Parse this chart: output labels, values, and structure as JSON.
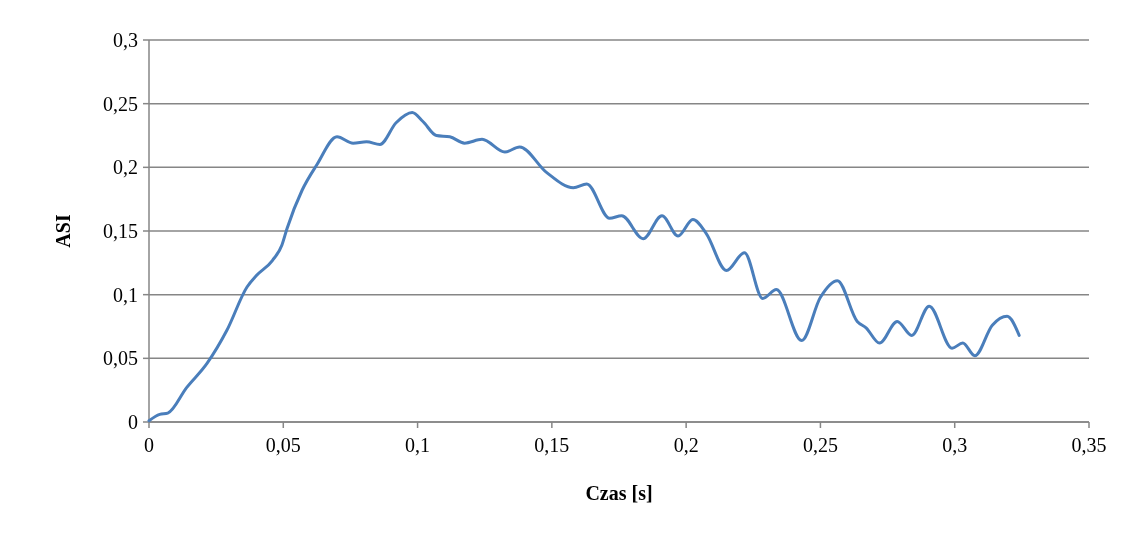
{
  "chart_data": {
    "type": "line",
    "xlabel": "Czas [s]",
    "ylabel": "ASI",
    "xlim": [
      0,
      0.35
    ],
    "ylim": [
      0,
      0.3
    ],
    "xticks": [
      0,
      {
        "value": 0.05,
        "label": "0,05"
      },
      {
        "value": 0.1,
        "label": "0,1"
      },
      {
        "value": 0.15,
        "label": "0,15"
      },
      {
        "value": 0.2,
        "label": "0,2"
      },
      {
        "value": 0.25,
        "label": "0,25"
      },
      {
        "value": 0.3,
        "label": "0,3"
      },
      {
        "value": 0.35,
        "label": "0,35"
      }
    ],
    "yticks": [
      0,
      {
        "value": 0.05,
        "label": "0,05"
      },
      {
        "value": 0.1,
        "label": "0,1"
      },
      {
        "value": 0.15,
        "label": "0,15"
      },
      {
        "value": 0.2,
        "label": "0,2"
      },
      {
        "value": 0.25,
        "label": "0,25"
      },
      {
        "value": 0.3,
        "label": "0,3"
      }
    ],
    "grid": "y",
    "marker": "none",
    "line_style": "solid",
    "series": [
      {
        "color": "#4a7ebb",
        "x": [
          0,
          0.004,
          0.007,
          0.014,
          0.0216,
          0.029,
          0.0365,
          0.04,
          0.046,
          0.0495,
          0.0514,
          0.057,
          0.0625,
          0.07,
          0.076,
          0.081,
          0.086,
          0.092,
          0.098,
          0.102,
          0.107,
          0.112,
          0.1175,
          0.124,
          0.1325,
          0.138,
          0.148,
          0.158,
          0.163,
          0.1715,
          0.176,
          0.184,
          0.191,
          0.197,
          0.2025,
          0.2075,
          0.215,
          0.2217,
          0.2285,
          0.2336,
          0.243,
          0.25,
          0.2563,
          0.2637,
          0.267,
          0.272,
          0.2786,
          0.284,
          0.2905,
          0.299,
          0.303,
          0.3075,
          0.314,
          0.3195,
          0.324
        ],
        "values": [
          0.001,
          0.006,
          0.007,
          0.027,
          0.046,
          0.072,
          0.106,
          0.115,
          0.127,
          0.139,
          0.152,
          0.182,
          0.202,
          0.224,
          0.219,
          0.22,
          0.218,
          0.235,
          0.243,
          0.236,
          0.225,
          0.224,
          0.219,
          0.222,
          0.212,
          0.216,
          0.196,
          0.184,
          0.187,
          0.16,
          0.162,
          0.144,
          0.162,
          0.146,
          0.159,
          0.148,
          0.119,
          0.133,
          0.097,
          0.104,
          0.064,
          0.098,
          0.111,
          0.079,
          0.074,
          0.062,
          0.079,
          0.068,
          0.091,
          0.058,
          0.062,
          0.052,
          0.076,
          0.083,
          0.068
        ]
      }
    ]
  }
}
